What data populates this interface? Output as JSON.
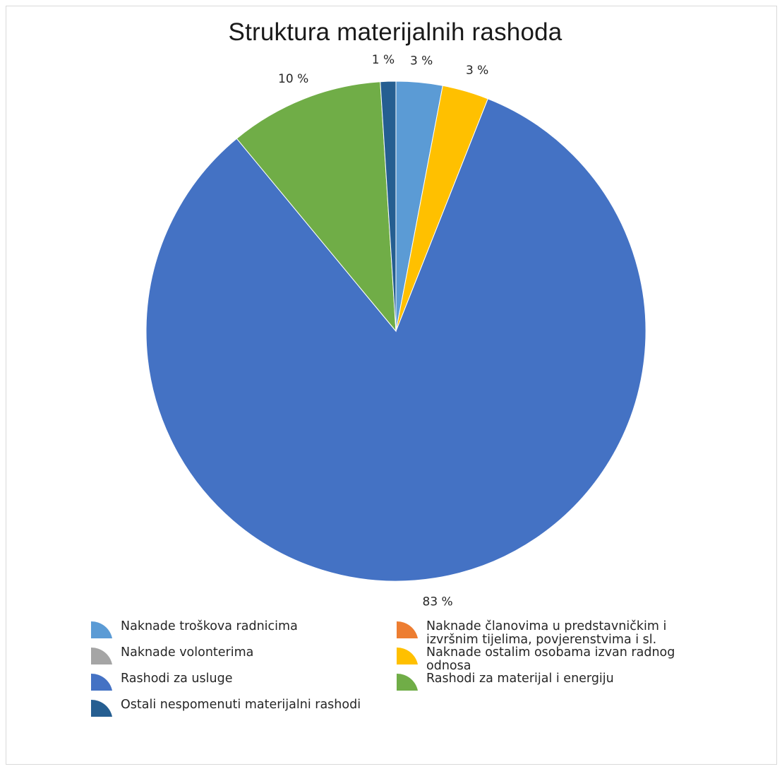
{
  "chart_data": {
    "type": "pie",
    "title": "Struktura materijalnih rashoda",
    "slices": [
      {
        "name": "Naknade troškova radnicima",
        "value": 3,
        "label": "3 %",
        "color": "#5B9BD5"
      },
      {
        "name": "Naknade članovima u predstavničkim i izvršnim tijelima, povjerenstvima i sl.",
        "value": 0,
        "label": "",
        "color": "#ED7D31"
      },
      {
        "name": "Naknade volonterima",
        "value": 0,
        "label": "",
        "color": "#A5A5A5"
      },
      {
        "name": "Naknade ostalim osobama izvan radnog odnosa",
        "value": 3,
        "label": "3 %",
        "color": "#FFC000"
      },
      {
        "name": "Rashodi za usluge",
        "value": 83,
        "label": "83 %",
        "color": "#4472C4"
      },
      {
        "name": "Rashodi za materijal i energiju",
        "value": 10,
        "label": "10 %",
        "color": "#70AD47"
      },
      {
        "name": "Ostali nespomenuti materijalni rashodi",
        "value": 1,
        "label": "1 %",
        "color": "#255E91"
      }
    ],
    "legend_position": "bottom"
  }
}
